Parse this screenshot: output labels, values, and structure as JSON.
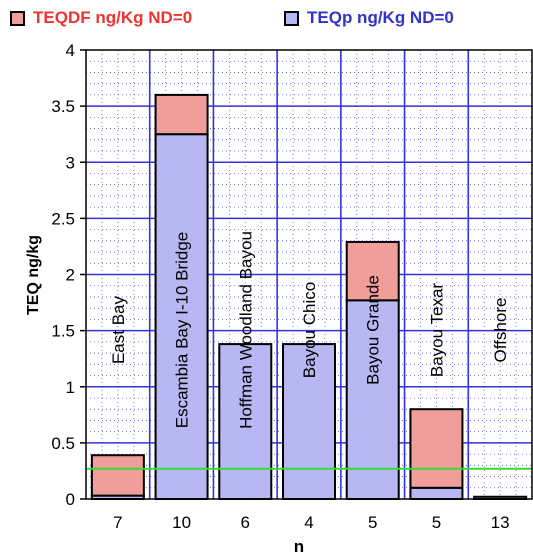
{
  "chart_data": {
    "type": "bar",
    "stacked": true,
    "categories": [
      "7",
      "10",
      "6",
      "4",
      "5",
      "5",
      "13"
    ],
    "site_labels": [
      "East Bay",
      "Escambia Bay  I-10 Bridge",
      "Hoffman Woodland Bayou",
      "Bayou Chico",
      "Bayou Grande",
      "Bayou Texar",
      "Offshore"
    ],
    "series": [
      {
        "name": "TEQp ng/Kg ND=0",
        "color": "#b7b7f3",
        "values": [
          0.03,
          3.25,
          1.38,
          1.38,
          1.77,
          0.1,
          0.02
        ]
      },
      {
        "name": "TEQDF ng/Kg ND=0",
        "color": "#f19d9a",
        "values": [
          0.36,
          0.35,
          0.0,
          0.0,
          0.52,
          0.7,
          0.0
        ]
      }
    ],
    "reference_line": {
      "value": 0.27,
      "color": "#33dd33"
    },
    "xlabel": "n",
    "ylabel": "TEQ ng/kg",
    "ylim": [
      0,
      4
    ],
    "yticks": [
      "0",
      "0.5",
      "1",
      "1.5",
      "2",
      "2.5",
      "3",
      "3.5",
      "4"
    ],
    "grid": true,
    "legend_position": "top",
    "legend_colors": {
      "TEQDF": "#ee3333",
      "TEQp": "#3333cc"
    }
  }
}
